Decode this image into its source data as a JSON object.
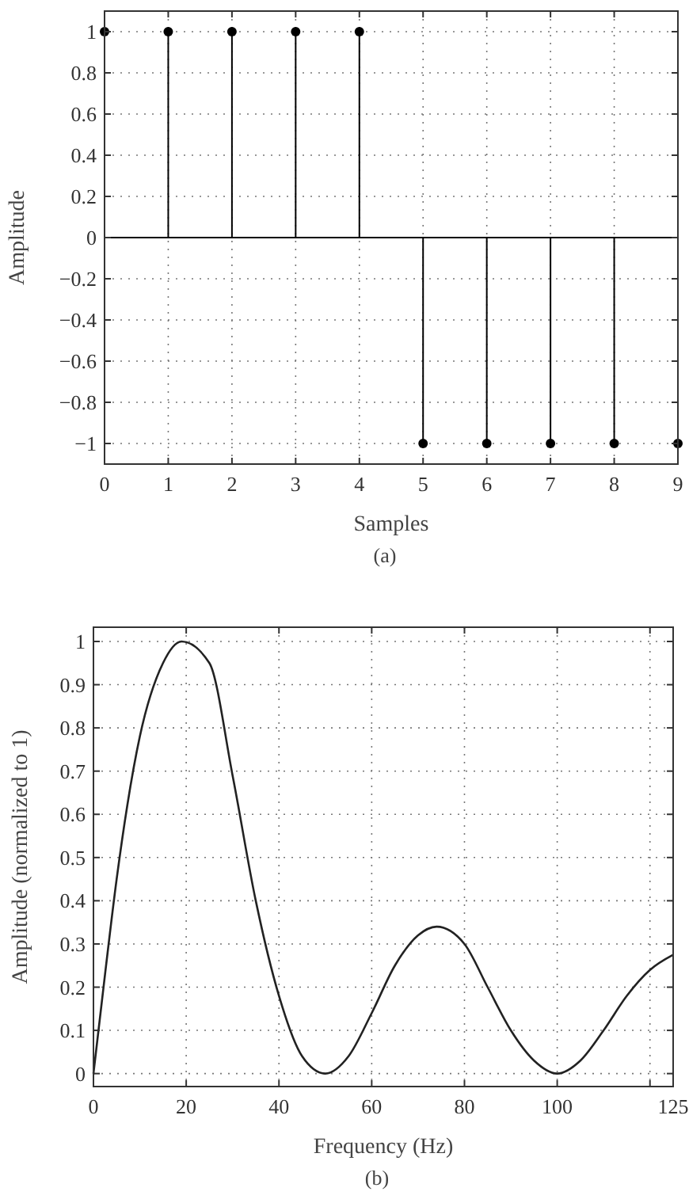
{
  "chart_data": [
    {
      "type": "lollipop",
      "xlabel": "Samples",
      "ylabel": "Amplitude",
      "annotations": [
        "(a)"
      ],
      "x": [
        0,
        1,
        2,
        3,
        4,
        5,
        6,
        7,
        8,
        9
      ],
      "values": [
        1,
        1,
        1,
        1,
        1,
        -1,
        -1,
        -1,
        -1,
        -1
      ],
      "color": "#000000",
      "marker": "circle",
      "xlim": [
        0,
        9
      ],
      "ylim": [
        -1.1,
        1.1
      ],
      "xticks": [
        0,
        1,
        2,
        3,
        4,
        5,
        6,
        7,
        8,
        9
      ],
      "yticks": [
        -1,
        -0.8,
        -0.6,
        -0.4,
        -0.2,
        0,
        0.2,
        0.4,
        0.6,
        0.8,
        1
      ],
      "grid": true
    },
    {
      "type": "line",
      "xlabel": "Frequency (Hz)",
      "ylabel": "Amplitude (normalized to 1)",
      "annotations": [
        "(b)"
      ],
      "line_style": "solid",
      "color": "#222222",
      "x": [
        0,
        2.5,
        5,
        10,
        15,
        19,
        25,
        30,
        35,
        40,
        45,
        50,
        55,
        60,
        65,
        70,
        74,
        80,
        85,
        90,
        95,
        100,
        105,
        110,
        115,
        120,
        125
      ],
      "values": [
        0,
        0.23,
        0.45,
        0.78,
        0.95,
        1.0,
        0.95,
        0.69,
        0.4,
        0.18,
        0.04,
        0,
        0.04,
        0.14,
        0.25,
        0.32,
        0.34,
        0.3,
        0.2,
        0.1,
        0.03,
        0,
        0.03,
        0.1,
        0.18,
        0.24,
        0.275
      ],
      "xlim": [
        0,
        125
      ],
      "ylim": [
        -0.03,
        1.033
      ],
      "xticks": [
        0,
        20,
        40,
        60,
        80,
        100,
        {
          "value": 120,
          "label": null
        },
        125
      ],
      "yticks": [
        0,
        0.1,
        0.2,
        0.3,
        0.4,
        0.5,
        0.6,
        0.7,
        0.8,
        0.9,
        1
      ],
      "grid": true
    }
  ]
}
